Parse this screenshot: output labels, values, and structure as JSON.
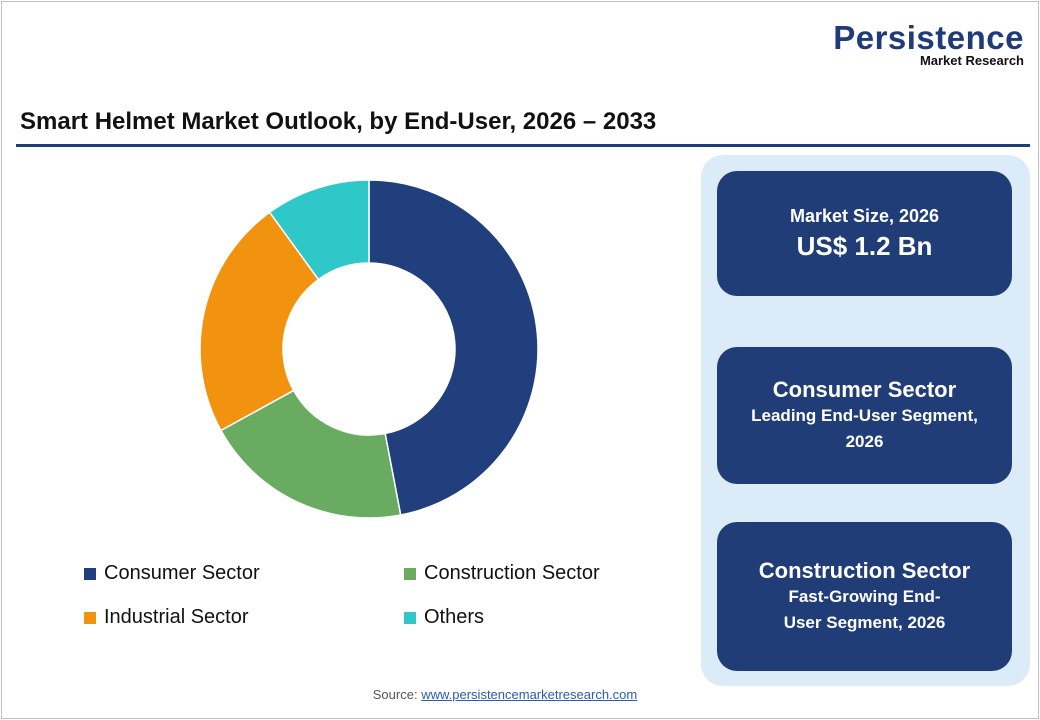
{
  "logo": {
    "brand": "Persistence",
    "sub": "Market Research"
  },
  "cards": [
    {
      "label": "Market Size, 2026",
      "value": "US$ 1.2 Bn"
    },
    {
      "heading": "Consumer Sector",
      "sub": "Leading End-User Segment, 2026"
    },
    {
      "heading": "Construction Sector",
      "sub": "Fast-Growing End-User Segment, 2026"
    }
  ],
  "source": {
    "label": "Source:",
    "link": "www.persistencemarketresearch.com"
  },
  "chart_data": {
    "type": "pie",
    "variant": "donut",
    "title": "Smart Helmet Market Outlook, by End-User, 2026 – 2033",
    "categories": [
      "Consumer Sector",
      "Construction Sector",
      "Industrial Sector",
      "Others"
    ],
    "values": [
      47,
      20,
      23,
      10
    ],
    "colors": [
      "#203f7c",
      "#6aab62",
      "#f29310",
      "#2ec8c8"
    ],
    "legend_order": [
      "Consumer Sector",
      "Construction Sector",
      "Industrial Sector",
      "Others"
    ],
    "legend": "bottom"
  }
}
